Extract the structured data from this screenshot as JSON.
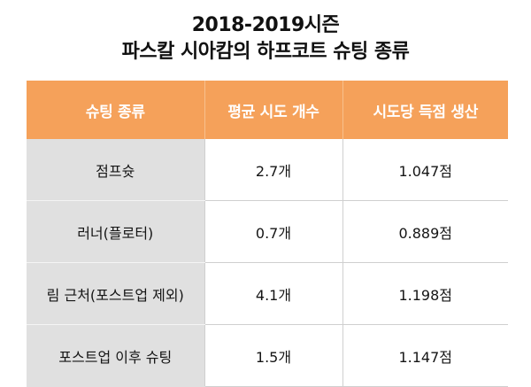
{
  "title": {
    "line1": "2018-2019시즌",
    "line2": "파스칼 시아캄의 하프코트 슈팅 종류"
  },
  "table": {
    "headers": [
      "슈팅 종류",
      "평균 시도 개수",
      "시도당 득점 생산"
    ],
    "rows": [
      [
        "점프슛",
        "2.7개",
        "1.047점"
      ],
      [
        "러너(플로터)",
        "0.7개",
        "0.889점"
      ],
      [
        "림 근처(포스트업 제외)",
        "4.1개",
        "1.198점"
      ],
      [
        "포스트업 이후 슈팅",
        "1.5개",
        "1.147점"
      ]
    ]
  },
  "colors": {
    "header_bg": "#f5a15a",
    "first_col_bg": "#e0e0e0"
  }
}
